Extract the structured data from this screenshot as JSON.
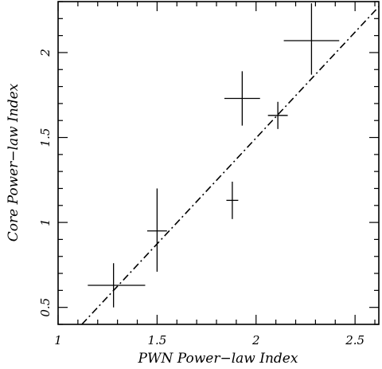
{
  "chart_data": {
    "type": "scatter",
    "xlabel": "PWN Power−law Index",
    "ylabel": "Core Power−law Index",
    "xlim": [
      1.0,
      2.62
    ],
    "ylim": [
      0.4,
      2.3
    ],
    "x_ticks": [
      1,
      1.5,
      2,
      2.5
    ],
    "x_tick_labels": [
      "1",
      "1.5",
      "2",
      "2.5"
    ],
    "y_ticks": [
      0.5,
      1,
      1.5,
      2
    ],
    "y_tick_labels": [
      "0.5",
      "1",
      "1.5",
      "2"
    ],
    "grid": false,
    "legend": "none",
    "series": [
      {
        "marker": "error-cross",
        "points": [
          {
            "x": 1.28,
            "y": 0.63,
            "xerr": [
              0.13,
              0.16
            ],
            "yerr": [
              0.13,
              0.13
            ]
          },
          {
            "x": 1.5,
            "y": 0.95,
            "xerr": [
              0.05,
              0.05
            ],
            "yerr": [
              0.24,
              0.25
            ]
          },
          {
            "x": 1.88,
            "y": 1.13,
            "xerr": [
              0.03,
              0.03
            ],
            "yerr": [
              0.11,
              0.11
            ]
          },
          {
            "x": 1.93,
            "y": 1.73,
            "xerr": [
              0.09,
              0.09
            ],
            "yerr": [
              0.16,
              0.16
            ]
          },
          {
            "x": 2.11,
            "y": 1.63,
            "xerr": [
              0.05,
              0.05
            ],
            "yerr": [
              0.08,
              0.08
            ]
          },
          {
            "x": 2.28,
            "y": 2.07,
            "xerr": [
              0.14,
              0.14
            ],
            "yerr": [
              0.2,
              0.22
            ]
          }
        ]
      }
    ],
    "reference_line": {
      "style": "dash-dot",
      "x": [
        1.12,
        2.62
      ],
      "y": [
        0.4,
        2.27
      ]
    }
  }
}
